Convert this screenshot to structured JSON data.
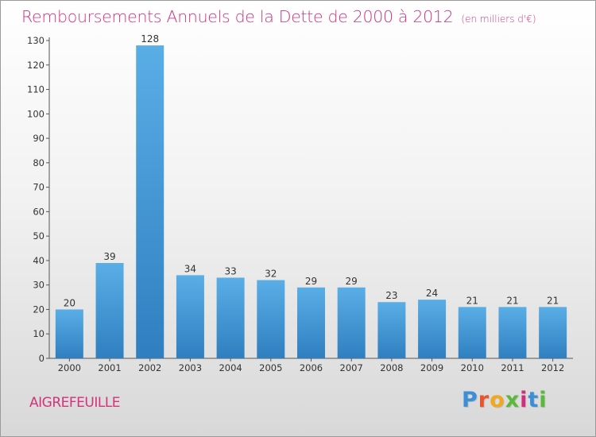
{
  "header": {
    "title": "Remboursements Annuels de la Dette de 2000 à 2012",
    "unit": "(en milliers d'€)"
  },
  "footer": {
    "commune": "AIGREFEUILLE",
    "brand_letters": [
      "P",
      "r",
      "o",
      "x",
      "i",
      "t",
      "i"
    ],
    "brand_colors": [
      "#3a8fd6",
      "#e8552a",
      "#f2a81d",
      "#5cb83a",
      "#d12f7b",
      "#3a8fd6",
      "#5cb83a"
    ]
  },
  "chart_data": {
    "type": "bar",
    "title": "Remboursements Annuels de la Dette de 2000 à 2012",
    "subtitle": "(en milliers d'€)",
    "categories": [
      "2000",
      "2001",
      "2002",
      "2003",
      "2004",
      "2005",
      "2006",
      "2007",
      "2008",
      "2009",
      "2010",
      "2011",
      "2012"
    ],
    "values": [
      20,
      39,
      128,
      34,
      33,
      32,
      29,
      29,
      23,
      24,
      21,
      21,
      21
    ],
    "ylim": [
      0,
      130
    ],
    "yticks": [
      0,
      10,
      20,
      30,
      40,
      50,
      60,
      70,
      80,
      90,
      100,
      110,
      120,
      130
    ],
    "grid": false,
    "data_labels": true,
    "bar_color_top": "#5aaee6",
    "bar_color_bottom": "#2f7fc0"
  }
}
